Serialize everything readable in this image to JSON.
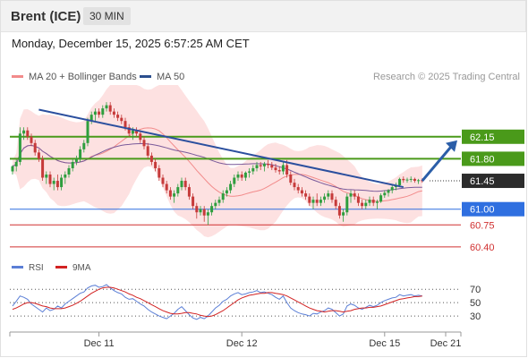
{
  "header": {
    "symbol": "Brent (ICE)",
    "timeframe": "30 MIN"
  },
  "datetime": "Monday, December 15, 2025 6:57:25 AM CET",
  "legend": {
    "ma20": {
      "label": "MA 20 + Bollinger Bands",
      "color": "#f28b8b"
    },
    "ma50": {
      "label": "MA 50",
      "color": "#2b4f8e"
    }
  },
  "copyright": "Research © 2025 Trading Central",
  "chart_data": {
    "type": "candlestick",
    "price_range": [
      60.2,
      62.9
    ],
    "last_price": "61.45",
    "levels": [
      {
        "value": 62.15,
        "label": "62.15",
        "kind": "resistance",
        "color": "#4a9a1a",
        "label_style": "box"
      },
      {
        "value": 61.8,
        "label": "61.80",
        "kind": "resistance",
        "color": "#4a9a1a",
        "label_style": "box"
      },
      {
        "value": 61.45,
        "label": "61.45",
        "kind": "last",
        "color": "#2b2b2b",
        "label_style": "dark"
      },
      {
        "value": 61.0,
        "label": "61.00",
        "kind": "pivot",
        "color": "#2f6fe0",
        "label_style": "box"
      },
      {
        "value": 60.75,
        "label": "60.75",
        "kind": "support",
        "color": "#d03030",
        "label_style": "text"
      },
      {
        "value": 60.4,
        "label": "60.40",
        "kind": "support",
        "color": "#d03030",
        "label_style": "text"
      }
    ],
    "x_ticks": [
      "Dec 11",
      "Dec 12",
      "Dec 15",
      "Dec 21"
    ],
    "candles": [
      [
        61.6,
        61.7,
        61.55,
        61.68
      ],
      [
        61.68,
        61.8,
        61.6,
        61.75
      ],
      [
        61.75,
        62.3,
        61.7,
        62.2
      ],
      [
        62.2,
        62.3,
        62.1,
        62.25
      ],
      [
        62.25,
        62.3,
        62.1,
        62.15
      ],
      [
        62.15,
        62.2,
        62.0,
        62.05
      ],
      [
        62.05,
        62.1,
        61.85,
        61.9
      ],
      [
        61.9,
        61.95,
        61.75,
        61.8
      ],
      [
        61.8,
        61.85,
        61.45,
        61.5
      ],
      [
        61.5,
        61.6,
        61.4,
        61.55
      ],
      [
        61.55,
        61.6,
        61.35,
        61.4
      ],
      [
        61.4,
        61.5,
        61.3,
        61.45
      ],
      [
        61.45,
        61.55,
        61.3,
        61.35
      ],
      [
        61.35,
        61.55,
        61.3,
        61.5
      ],
      [
        61.5,
        61.6,
        61.4,
        61.55
      ],
      [
        61.55,
        61.7,
        61.5,
        61.65
      ],
      [
        61.65,
        61.8,
        61.6,
        61.75
      ],
      [
        61.75,
        61.85,
        61.7,
        61.8
      ],
      [
        61.8,
        62.0,
        61.75,
        61.95
      ],
      [
        61.95,
        62.1,
        61.9,
        62.05
      ],
      [
        62.05,
        62.45,
        62.0,
        62.4
      ],
      [
        62.4,
        62.55,
        62.35,
        62.5
      ],
      [
        62.5,
        62.6,
        62.4,
        62.55
      ],
      [
        62.55,
        62.6,
        62.45,
        62.5
      ],
      [
        62.5,
        62.65,
        62.45,
        62.6
      ],
      [
        62.6,
        62.7,
        62.55,
        62.65
      ],
      [
        62.65,
        62.7,
        62.5,
        62.55
      ],
      [
        62.55,
        62.6,
        62.45,
        62.5
      ],
      [
        62.5,
        62.55,
        62.4,
        62.45
      ],
      [
        62.45,
        62.5,
        62.35,
        62.4
      ],
      [
        62.4,
        62.45,
        62.25,
        62.3
      ],
      [
        62.3,
        62.35,
        62.15,
        62.2
      ],
      [
        62.2,
        62.3,
        62.1,
        62.25
      ],
      [
        62.25,
        62.3,
        62.15,
        62.2
      ],
      [
        62.2,
        62.25,
        62.05,
        62.1
      ],
      [
        62.1,
        62.15,
        61.95,
        62.0
      ],
      [
        62.0,
        62.05,
        61.8,
        61.85
      ],
      [
        61.85,
        61.9,
        61.7,
        61.75
      ],
      [
        61.75,
        61.8,
        61.6,
        61.65
      ],
      [
        61.65,
        61.7,
        61.45,
        61.5
      ],
      [
        61.5,
        61.55,
        61.35,
        61.4
      ],
      [
        61.4,
        61.45,
        61.25,
        61.3
      ],
      [
        61.3,
        61.35,
        61.15,
        61.2
      ],
      [
        61.2,
        61.3,
        61.1,
        61.25
      ],
      [
        61.25,
        61.4,
        61.2,
        61.35
      ],
      [
        61.35,
        61.5,
        61.3,
        61.45
      ],
      [
        61.45,
        61.5,
        61.3,
        61.35
      ],
      [
        61.35,
        61.4,
        61.15,
        61.2
      ],
      [
        61.2,
        61.25,
        61.0,
        61.05
      ],
      [
        61.05,
        61.1,
        60.85,
        60.95
      ],
      [
        60.95,
        61.05,
        60.9,
        61.0
      ],
      [
        61.0,
        61.05,
        60.8,
        60.9
      ],
      [
        60.9,
        61.0,
        60.75,
        60.95
      ],
      [
        60.95,
        61.1,
        60.9,
        61.05
      ],
      [
        61.05,
        61.15,
        61.0,
        61.1
      ],
      [
        61.1,
        61.2,
        61.05,
        61.15
      ],
      [
        61.15,
        61.3,
        61.1,
        61.25
      ],
      [
        61.25,
        61.35,
        61.2,
        61.3
      ],
      [
        61.3,
        61.45,
        61.25,
        61.4
      ],
      [
        61.4,
        61.55,
        61.35,
        61.5
      ],
      [
        61.5,
        61.6,
        61.45,
        61.55
      ],
      [
        61.55,
        61.6,
        61.45,
        61.5
      ],
      [
        61.5,
        61.6,
        61.45,
        61.58
      ],
      [
        61.58,
        61.65,
        61.5,
        61.6
      ],
      [
        61.6,
        61.7,
        61.55,
        61.65
      ],
      [
        61.65,
        61.75,
        61.6,
        61.7
      ],
      [
        61.7,
        61.75,
        61.62,
        61.68
      ],
      [
        61.68,
        61.75,
        61.6,
        61.72
      ],
      [
        61.72,
        61.78,
        61.65,
        61.7
      ],
      [
        61.7,
        61.75,
        61.62,
        61.66
      ],
      [
        61.66,
        61.72,
        61.58,
        61.62
      ],
      [
        61.62,
        61.68,
        61.55,
        61.6
      ],
      [
        61.6,
        61.75,
        61.55,
        61.7
      ],
      [
        61.7,
        61.78,
        61.5,
        61.55
      ],
      [
        61.55,
        61.6,
        61.38,
        61.42
      ],
      [
        61.42,
        61.48,
        61.3,
        61.35
      ],
      [
        61.35,
        61.4,
        61.25,
        61.3
      ],
      [
        61.3,
        61.35,
        61.2,
        61.25
      ],
      [
        61.25,
        61.3,
        61.15,
        61.2
      ],
      [
        61.2,
        61.25,
        61.05,
        61.1
      ],
      [
        61.1,
        61.2,
        61.0,
        61.15
      ],
      [
        61.15,
        61.25,
        61.05,
        61.1
      ],
      [
        61.1,
        61.2,
        61.05,
        61.15
      ],
      [
        61.15,
        61.25,
        61.1,
        61.2
      ],
      [
        61.2,
        61.3,
        61.15,
        61.25
      ],
      [
        61.25,
        61.3,
        61.1,
        61.15
      ],
      [
        61.15,
        61.2,
        61.0,
        61.05
      ],
      [
        61.05,
        61.1,
        60.85,
        60.9
      ],
      [
        60.9,
        61.0,
        60.8,
        60.95
      ],
      [
        60.95,
        61.25,
        60.9,
        61.2
      ],
      [
        61.2,
        61.3,
        61.1,
        61.25
      ],
      [
        61.25,
        61.3,
        61.15,
        61.2
      ],
      [
        61.2,
        61.25,
        61.05,
        61.1
      ],
      [
        61.1,
        61.15,
        61.0,
        61.05
      ],
      [
        61.05,
        61.15,
        61.0,
        61.1
      ],
      [
        61.1,
        61.2,
        61.05,
        61.15
      ],
      [
        61.15,
        61.2,
        61.05,
        61.1
      ],
      [
        61.1,
        61.15,
        61.0,
        61.12
      ],
      [
        61.12,
        61.25,
        61.1,
        61.22
      ],
      [
        61.22,
        61.3,
        61.18,
        61.26
      ],
      [
        61.26,
        61.32,
        61.2,
        61.3
      ],
      [
        61.3,
        61.38,
        61.25,
        61.35
      ],
      [
        61.35,
        61.42,
        61.3,
        61.38
      ],
      [
        61.38,
        61.5,
        61.35,
        61.48
      ],
      [
        61.48,
        61.52,
        61.42,
        61.46
      ],
      [
        61.46,
        61.5,
        61.42,
        61.47
      ],
      [
        61.47,
        61.52,
        61.43,
        61.48
      ],
      [
        61.48,
        61.5,
        61.42,
        61.45
      ],
      [
        61.45,
        61.48,
        61.4,
        61.46
      ],
      [
        61.46,
        61.49,
        61.42,
        61.45
      ]
    ],
    "candle_colors": {
      "up": "#2e9e3e",
      "down": "#c63a3a"
    },
    "trendline": [
      [
        7,
        62.58
      ],
      [
        104,
        61.35
      ]
    ],
    "forecast_arrow": {
      "from": [
        109,
        61.45
      ],
      "to": 62.15,
      "color": "#2b5ea8"
    },
    "rsi": {
      "range": [
        10,
        85
      ],
      "levels": [
        70,
        50,
        30
      ],
      "level_labels": [
        "70",
        "50",
        "30"
      ],
      "series": [
        {
          "name": "RSI",
          "color": "#5b7fd6",
          "values": [
            45,
            52,
            60,
            58,
            55,
            48,
            44,
            40,
            36,
            42,
            38,
            40,
            45,
            42,
            48,
            52,
            56,
            60,
            64,
            66,
            72,
            75,
            76,
            73,
            74,
            77,
            72,
            68,
            65,
            63,
            58,
            55,
            56,
            52,
            48,
            45,
            40,
            36,
            33,
            30,
            28,
            26,
            30,
            34,
            40,
            44,
            38,
            32,
            27,
            25,
            28,
            26,
            30,
            36,
            42,
            46,
            52,
            55,
            60,
            63,
            65,
            62,
            63,
            65,
            66,
            68,
            65,
            66,
            64,
            62,
            58,
            55,
            60,
            50,
            42,
            38,
            35,
            33,
            32,
            30,
            34,
            33,
            36,
            38,
            42,
            40,
            35,
            30,
            33,
            45,
            48,
            46,
            42,
            40,
            43,
            46,
            44,
            46,
            50,
            53,
            55,
            57,
            58,
            62,
            60,
            61,
            62,
            60,
            61,
            60
          ]
        },
        {
          "name": "9MA",
          "color": "#d22222",
          "values": [
            40,
            42,
            45,
            48,
            50,
            50,
            49,
            47,
            45,
            44,
            42,
            41,
            41,
            41,
            42,
            44,
            46,
            49,
            52,
            56,
            60,
            64,
            67,
            70,
            72,
            73,
            73,
            72,
            70,
            68,
            66,
            63,
            61,
            58,
            56,
            53,
            50,
            47,
            44,
            41,
            38,
            36,
            34,
            33,
            33,
            34,
            35,
            35,
            34,
            33,
            31,
            30,
            29,
            30,
            32,
            35,
            38,
            42,
            46,
            50,
            54,
            57,
            59,
            61,
            62,
            63,
            64,
            64,
            65,
            65,
            64,
            63,
            62,
            60,
            57,
            54,
            51,
            48,
            45,
            42,
            40,
            38,
            37,
            36,
            37,
            38,
            38,
            37,
            36,
            37,
            38,
            40,
            41,
            42,
            42,
            43,
            43,
            44,
            45,
            47,
            49,
            51,
            53,
            55,
            56,
            57,
            58,
            59,
            59,
            60
          ]
        }
      ]
    }
  },
  "rsi_legend": {
    "rsi": {
      "label": "RSI",
      "color": "#5b7fd6"
    },
    "ma9": {
      "label": "9MA",
      "color": "#d22222"
    }
  }
}
